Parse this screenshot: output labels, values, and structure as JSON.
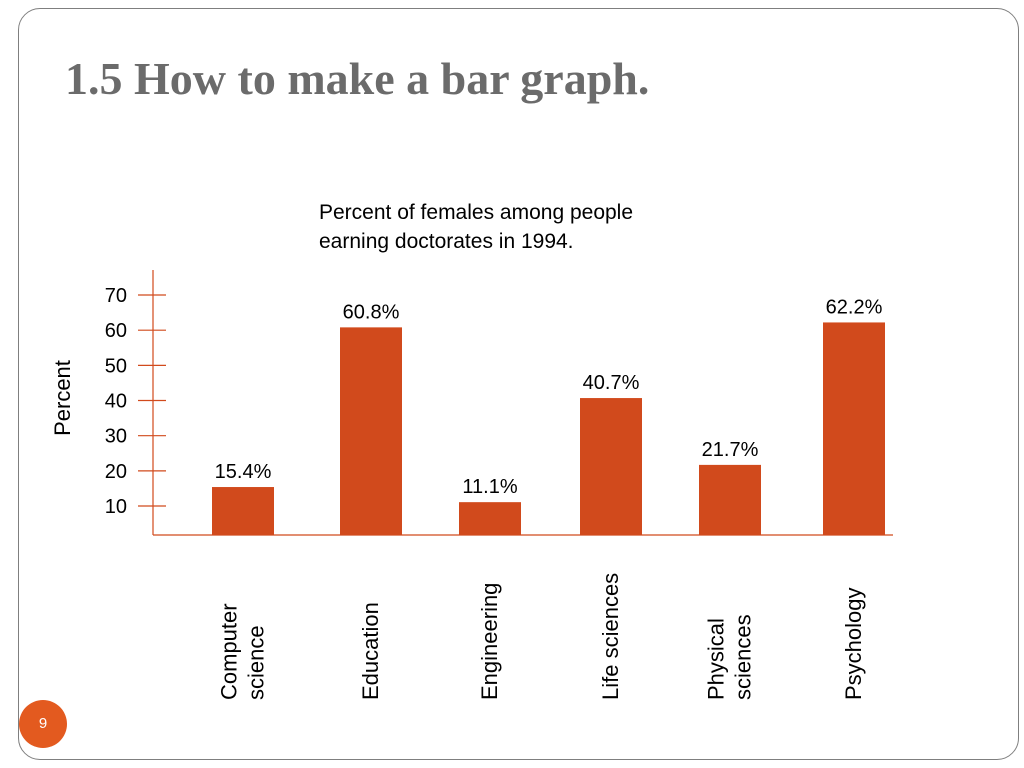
{
  "slide": {
    "title": "1.5 How to make a bar graph.",
    "page_number": "9"
  },
  "chart_data": {
    "type": "bar",
    "title_lines": [
      "Percent of females among people",
      "earning doctorates in 1994."
    ],
    "ylabel": "Percent",
    "xlabel": "",
    "yticks": [
      10,
      20,
      30,
      40,
      50,
      60,
      70
    ],
    "categories": [
      [
        "Computer",
        "science"
      ],
      [
        "Education"
      ],
      [
        "Engineering"
      ],
      [
        "Life sciences"
      ],
      [
        "Physical",
        "sciences"
      ],
      [
        "Psychology"
      ]
    ],
    "values": [
      15.4,
      60.8,
      11.1,
      40.7,
      21.7,
      62.2
    ],
    "data_labels": [
      "15.4%",
      "60.8%",
      "11.1%",
      "40.7%",
      "21.7%",
      "62.2%"
    ],
    "bar_color": "#d14a1c",
    "grid": false,
    "legend": false
  }
}
